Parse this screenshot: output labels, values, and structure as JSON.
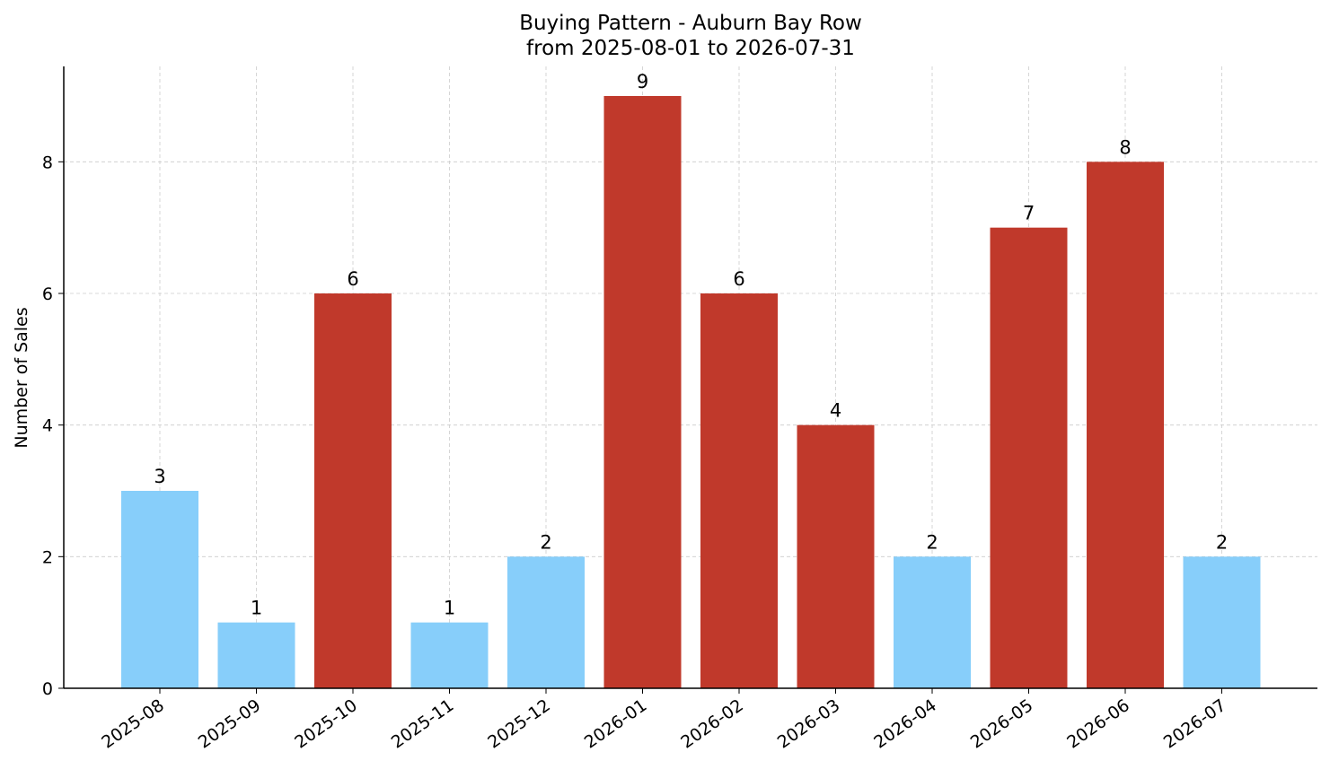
{
  "chart_data": {
    "type": "bar",
    "title_line1": "Buying Pattern - Auburn Bay Row",
    "title_line2": "from 2025-08-01 to 2026-07-31",
    "xlabel": "",
    "ylabel": "Number of Sales",
    "categories": [
      "2025-08",
      "2025-09",
      "2025-10",
      "2025-11",
      "2025-12",
      "2026-01",
      "2026-02",
      "2026-03",
      "2026-04",
      "2026-05",
      "2026-06",
      "2026-07"
    ],
    "values": [
      3,
      1,
      6,
      1,
      2,
      9,
      6,
      4,
      2,
      7,
      8,
      2
    ],
    "bar_colors": [
      "#87CEFA",
      "#87CEFA",
      "#C0392B",
      "#87CEFA",
      "#87CEFA",
      "#C0392B",
      "#C0392B",
      "#C0392B",
      "#87CEFA",
      "#C0392B",
      "#C0392B",
      "#87CEFA"
    ],
    "ylim": [
      0,
      9.45
    ],
    "yticks": [
      0,
      2,
      4,
      6,
      8
    ],
    "grid": true,
    "data_labels": true
  }
}
